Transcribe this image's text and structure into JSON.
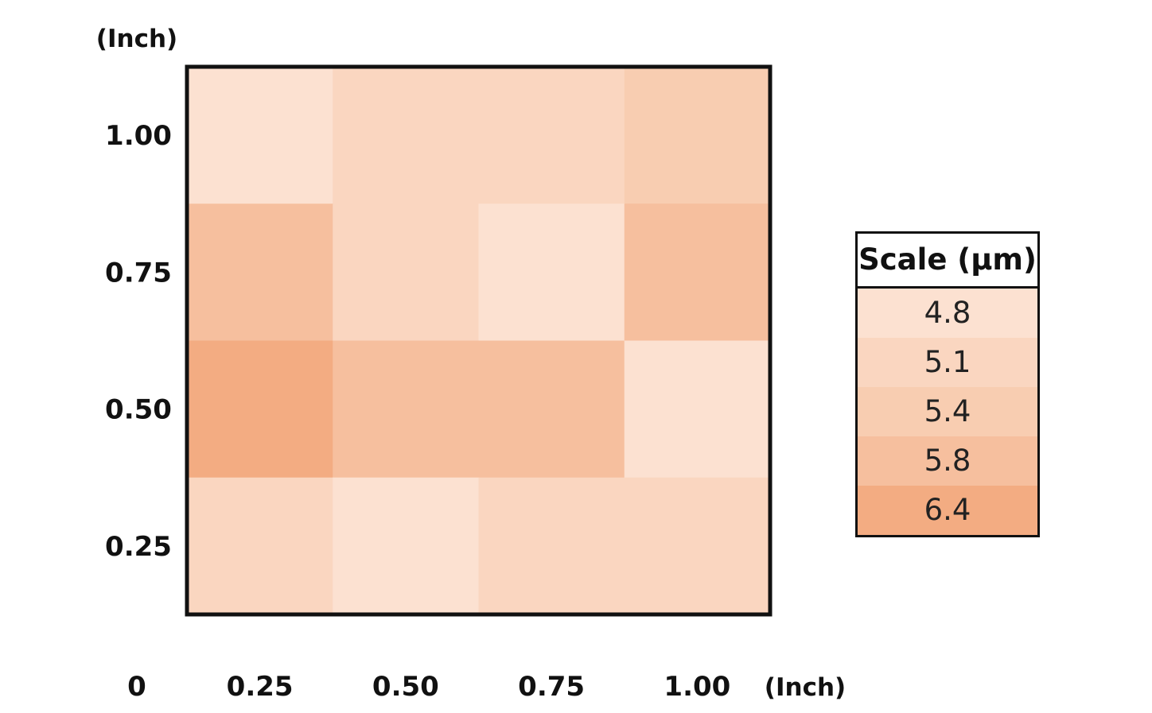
{
  "chart_data": {
    "type": "heatmap",
    "title": "",
    "xlabel": "(Inch)",
    "ylabel": "(Inch)",
    "origin_label": "0",
    "x_ticks": [
      "0.25",
      "0.50",
      "0.75",
      "1.00"
    ],
    "y_ticks": [
      "1.00",
      "0.75",
      "0.50",
      "0.25"
    ],
    "x_range": [
      0,
      1.0
    ],
    "y_range": [
      0,
      1.0
    ],
    "rows_top_to_bottom": [
      [
        4.8,
        5.1,
        5.1,
        5.4
      ],
      [
        5.8,
        5.1,
        4.8,
        5.8
      ],
      [
        6.4,
        5.8,
        5.8,
        4.8
      ],
      [
        5.1,
        4.8,
        5.1,
        5.1
      ]
    ],
    "legend": {
      "title": "Scale (µm)",
      "placement": "right",
      "levels": [
        {
          "label": "4.8",
          "value": 4.8,
          "color": "#fce1d1"
        },
        {
          "label": "5.1",
          "value": 5.1,
          "color": "#fad6c0"
        },
        {
          "label": "5.4",
          "value": 5.4,
          "color": "#f8cdb1"
        },
        {
          "label": "5.8",
          "value": 5.8,
          "color": "#f6bf9e"
        },
        {
          "label": "6.4",
          "value": 6.4,
          "color": "#f3ac82"
        }
      ]
    },
    "grid": false
  }
}
